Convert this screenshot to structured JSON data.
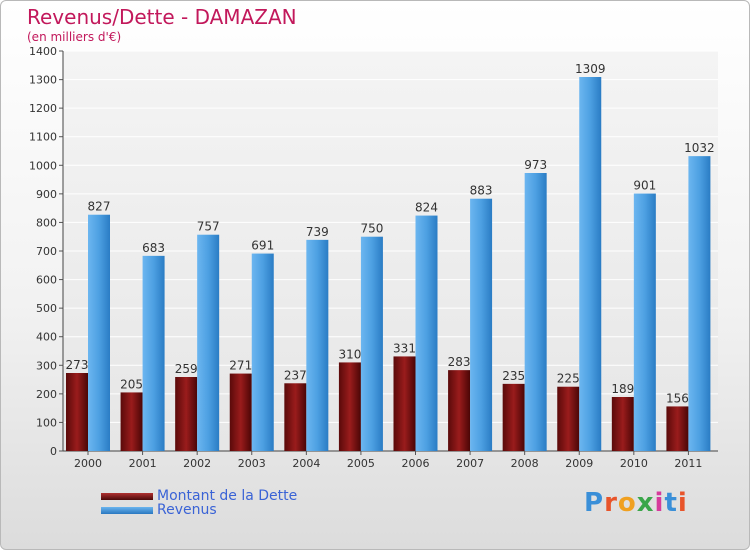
{
  "header": {
    "title": "Revenus/Dette - DAMAZAN",
    "subtitle": "(en milliers d'€)"
  },
  "chart_data": {
    "type": "bar",
    "title": "Revenus/Dette - DAMAZAN",
    "ylabel": "(en milliers d'€)",
    "xlabel": "",
    "ylim": [
      0,
      1400
    ],
    "yticks": [
      0,
      100,
      200,
      300,
      400,
      500,
      600,
      700,
      800,
      900,
      1000,
      1100,
      1200,
      1300,
      1400
    ],
    "grid": true,
    "legend_position": "bottom-left",
    "categories": [
      "2000",
      "2001",
      "2002",
      "2003",
      "2004",
      "2005",
      "2006",
      "2007",
      "2008",
      "2009",
      "2010",
      "2011"
    ],
    "series": [
      {
        "name": "Montant de la Dette",
        "color": "#7a0f0f",
        "values": [
          273,
          205,
          259,
          271,
          237,
          310,
          331,
          283,
          235,
          225,
          189,
          156
        ]
      },
      {
        "name": "Revenus",
        "color": "#4a9de0",
        "values": [
          827,
          683,
          757,
          691,
          739,
          750,
          824,
          883,
          973,
          1309,
          901,
          1032
        ]
      }
    ]
  },
  "legend": {
    "items": [
      {
        "label": "Montant de la Dette",
        "color": "#7a0f0f"
      },
      {
        "label": "Revenus",
        "color": "#4a9de0"
      }
    ]
  },
  "logo": {
    "text": "Proxiti",
    "letter_colors": [
      "#3a8fd8",
      "#e8542a",
      "#f0a020",
      "#3aa64a",
      "#d63a9c",
      "#3a8fd8",
      "#e8542a"
    ]
  }
}
